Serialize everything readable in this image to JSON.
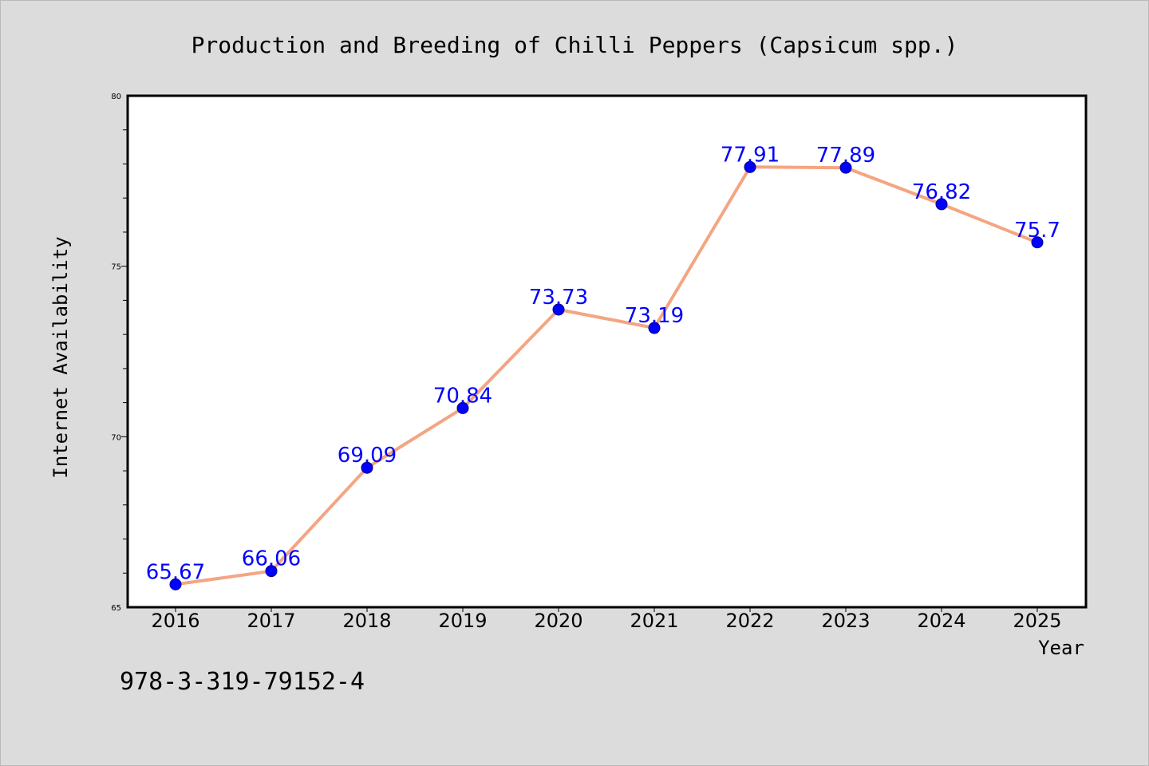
{
  "chart_data": {
    "type": "line",
    "title": "Production and Breeding of Chilli Peppers (Capsicum spp.)",
    "xlabel": "Year",
    "ylabel": "Internet Availability",
    "categories": [
      "2016",
      "2017",
      "2018",
      "2019",
      "2020",
      "2021",
      "2022",
      "2023",
      "2024",
      "2025"
    ],
    "values": [
      65.67,
      66.06,
      69.09,
      70.84,
      73.73,
      73.19,
      77.91,
      77.89,
      76.82,
      75.7
    ],
    "data_labels": [
      "65.67",
      "66.06",
      "69.09",
      "70.84",
      "73.73",
      "73.19",
      "77.91",
      "77.89",
      "76.82",
      "75.7"
    ],
    "ylim": [
      65,
      80
    ],
    "yticks": [
      "65",
      "70",
      "75",
      "80"
    ],
    "grid": false,
    "colors": {
      "line": "#f4a582",
      "marker": "#0000ff",
      "label": "#0000ff",
      "plot_bg": "#ffffff",
      "page_bg": "#dcdcdc"
    }
  },
  "footer": {
    "isbn": "978-3-319-79152-4"
  }
}
